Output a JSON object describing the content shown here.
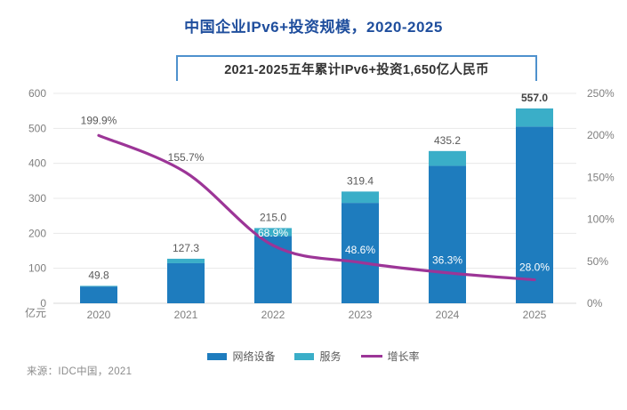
{
  "title": "中国企业IPv6+投资规模，2020-2025",
  "title_color": "#1f4e9d",
  "annotation": "2021-2025五年累计IPv6+投资1,650亿人民币",
  "annotation_border_color": "#4e91cd",
  "source": "来源：IDC中国，2021",
  "chart_data": {
    "type": "bar+line combo (stacked bars on left axis, growth line on right axis)",
    "categories": [
      "2020",
      "2021",
      "2022",
      "2023",
      "2024",
      "2025"
    ],
    "series": [
      {
        "name": "网络设备",
        "type": "bar",
        "stack": "total",
        "color": "#1e7cbe",
        "values": [
          48.0,
          114.5,
          192.0,
          287.0,
          393.0,
          505.0
        ],
        "note": "split between bar segments estimated from pixels; only stack totals are labeled"
      },
      {
        "name": "服务",
        "type": "bar",
        "stack": "total",
        "color": "#3aaec8",
        "values": [
          1.8,
          12.8,
          23.0,
          32.4,
          42.2,
          52.0
        ]
      },
      {
        "name": "增长率",
        "type": "line",
        "axis": "right",
        "color": "#9c3597",
        "values": [
          199.9,
          155.7,
          68.9,
          48.6,
          36.3,
          28.0
        ]
      }
    ],
    "totals": [
      49.8,
      127.3,
      215.0,
      319.4,
      435.2,
      557.0
    ],
    "total_labels": [
      "49.8",
      "127.3",
      "215.0",
      "319.4",
      "435.2",
      "557.0"
    ],
    "growth_labels": [
      "199.9%",
      "155.7%",
      "68.9%",
      "48.6%",
      "36.3%",
      "28.0%"
    ],
    "left_axis": {
      "min": 0,
      "max": 600,
      "step": 100,
      "ticks": [
        "0",
        "100",
        "200",
        "300",
        "400",
        "500",
        "600"
      ],
      "unit": "亿元"
    },
    "right_axis": {
      "min": 0,
      "max": 250,
      "step": 50,
      "ticks": [
        "0%",
        "50%",
        "100%",
        "150%",
        "200%",
        "250%"
      ]
    },
    "grid": "horizontal light-gray lines",
    "legend_position": "bottom",
    "label_colors": {
      "totals": "#595959",
      "final_total": "#404040",
      "growth_outside": "#595959",
      "growth_inside": "#ffffff",
      "axis_ticks": "#7f7f7f"
    }
  }
}
